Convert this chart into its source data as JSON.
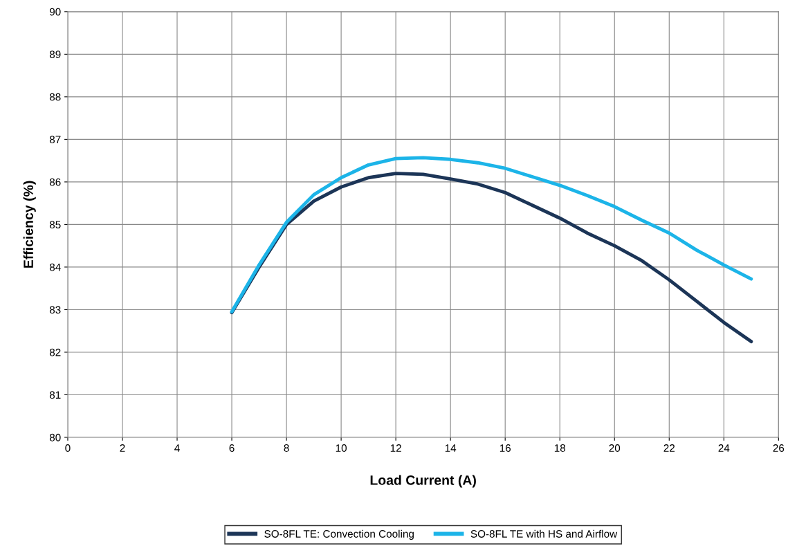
{
  "chart_data": {
    "type": "line",
    "xlabel": "Load Current (A)",
    "ylabel": "Efficiency (%)",
    "x": [
      6,
      7,
      8,
      9,
      10,
      11,
      12,
      13,
      14,
      15,
      16,
      17,
      18,
      19,
      20,
      21,
      22,
      23,
      24,
      25
    ],
    "series": [
      {
        "name": "SO-8FL TE: Convection Cooling",
        "color": "#1c3557",
        "values": [
          82.93,
          84.0,
          85.0,
          85.55,
          85.88,
          86.1,
          86.2,
          86.18,
          86.07,
          85.95,
          85.75,
          85.45,
          85.15,
          84.8,
          84.5,
          84.15,
          83.7,
          83.2,
          82.7,
          82.25
        ]
      },
      {
        "name": "SO-8FL TE with HS and Airflow",
        "color": "#1cb4e8",
        "values": [
          82.95,
          84.05,
          85.05,
          85.7,
          86.1,
          86.4,
          86.55,
          86.57,
          86.53,
          86.45,
          86.32,
          86.12,
          85.92,
          85.68,
          85.42,
          85.1,
          84.8,
          84.4,
          84.05,
          83.72
        ]
      }
    ],
    "xlim": [
      0,
      26
    ],
    "xticks": [
      0,
      2,
      4,
      6,
      8,
      10,
      12,
      14,
      16,
      18,
      20,
      22,
      24,
      26
    ],
    "ylim": [
      80,
      90
    ],
    "yticks": [
      80,
      81,
      82,
      83,
      84,
      85,
      86,
      87,
      88,
      89,
      90
    ],
    "grid": true,
    "legend": "bottom",
    "marker": "none",
    "line_style": "solid"
  }
}
